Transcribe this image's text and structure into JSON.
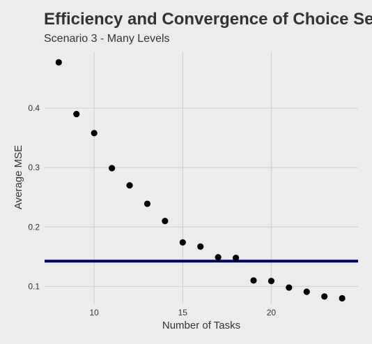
{
  "chart_data": {
    "type": "scatter",
    "title": "Efficiency and Convergence of Choice Se",
    "subtitle": "Scenario 3 - Many Levels",
    "xlabel": "Number of Tasks",
    "ylabel": "Average MSE",
    "xlim": [
      7.2,
      24.9
    ],
    "ylim": [
      0.07,
      0.495
    ],
    "xticks": [
      10,
      15,
      20
    ],
    "yticks": [
      0.1,
      0.2,
      0.3,
      0.4
    ],
    "ytick_labels": [
      "0.1",
      "0.2",
      "0.3",
      "0.4"
    ],
    "grid": true,
    "legend": "none",
    "points": [
      {
        "x": 8,
        "y": 0.477
      },
      {
        "x": 9,
        "y": 0.39
      },
      {
        "x": 10,
        "y": 0.358
      },
      {
        "x": 11,
        "y": 0.299
      },
      {
        "x": 12,
        "y": 0.27
      },
      {
        "x": 13,
        "y": 0.239
      },
      {
        "x": 14,
        "y": 0.21
      },
      {
        "x": 15,
        "y": 0.174
      },
      {
        "x": 16,
        "y": 0.167
      },
      {
        "x": 17,
        "y": 0.149
      },
      {
        "x": 18,
        "y": 0.148
      },
      {
        "x": 19,
        "y": 0.11
      },
      {
        "x": 20,
        "y": 0.109
      },
      {
        "x": 21,
        "y": 0.098
      },
      {
        "x": 22,
        "y": 0.091
      },
      {
        "x": 23,
        "y": 0.083
      },
      {
        "x": 24,
        "y": 0.08
      }
    ],
    "reference_line": {
      "y": 0.1425,
      "color": "#000066"
    },
    "colors": {
      "background": "#ececec",
      "grid": "#d2d2d2",
      "point": "#000000",
      "text": "#333333"
    }
  }
}
